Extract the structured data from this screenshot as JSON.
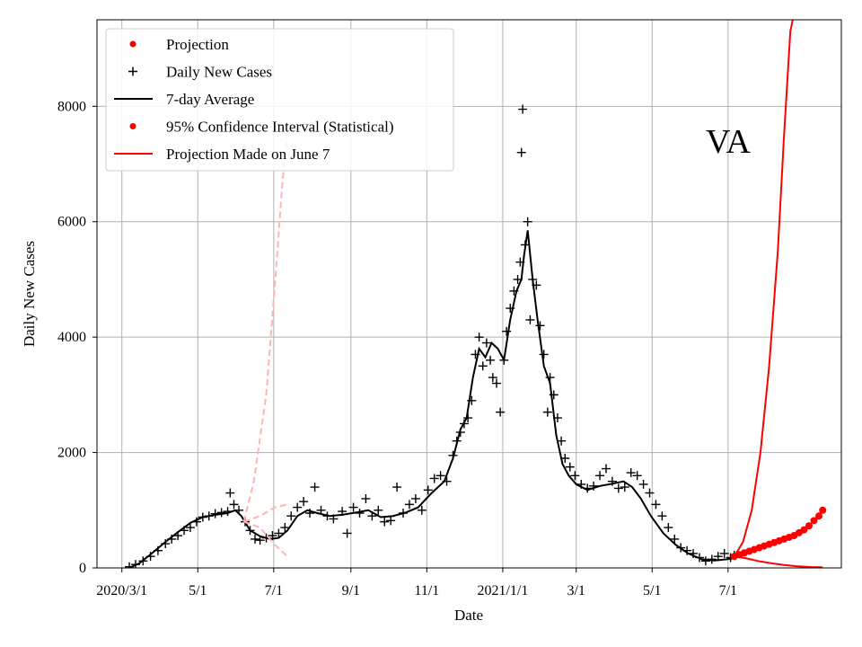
{
  "chart_data": {
    "type": "line",
    "title": "",
    "xlabel": "Date",
    "ylabel": "Daily New Cases",
    "annotation": "VA",
    "x_ticks": [
      "2020/3/1",
      "5/1",
      "7/1",
      "9/1",
      "11/1",
      "2021/1/1",
      "3/1",
      "5/1",
      "7/1"
    ],
    "y_ticks": [
      "0",
      "2000",
      "4000",
      "6000",
      "8000"
    ],
    "ylim": [
      0,
      9500
    ],
    "xlim": [
      "2020-02-10",
      "2021-09-30"
    ],
    "grid": true,
    "legend_position": "top-left",
    "legend": [
      {
        "label": "Projection",
        "marker": "dot",
        "color": "#ff0000"
      },
      {
        "label": "Daily New Cases",
        "marker": "plus",
        "color": "#000000"
      },
      {
        "label": "7-day Average",
        "marker": "line",
        "color": "#000000"
      },
      {
        "label": "95% Confidence Interval (Statistical)",
        "marker": "dot",
        "color": "#ff0000"
      },
      {
        "label": "Projection Made on June 7",
        "marker": "line",
        "color": "#ff0000"
      }
    ],
    "series": [
      {
        "name": "7-day Average",
        "kind": "line",
        "color": "#000000",
        "x": [
          "2020-03-07",
          "2020-03-15",
          "2020-03-25",
          "2020-04-05",
          "2020-04-15",
          "2020-04-25",
          "2020-05-05",
          "2020-05-15",
          "2020-05-25",
          "2020-05-31",
          "2020-06-05",
          "2020-06-12",
          "2020-06-20",
          "2020-06-28",
          "2020-07-05",
          "2020-07-12",
          "2020-07-20",
          "2020-07-28",
          "2020-08-05",
          "2020-08-15",
          "2020-08-25",
          "2020-09-05",
          "2020-09-15",
          "2020-09-25",
          "2020-10-05",
          "2020-10-15",
          "2020-10-25",
          "2020-11-05",
          "2020-11-15",
          "2020-11-22",
          "2020-11-28",
          "2020-12-03",
          "2020-12-08",
          "2020-12-13",
          "2020-12-18",
          "2020-12-23",
          "2020-12-28",
          "2021-01-02",
          "2021-01-07",
          "2021-01-12",
          "2021-01-16",
          "2021-01-18",
          "2021-01-21",
          "2021-01-25",
          "2021-01-29",
          "2021-02-03",
          "2021-02-08",
          "2021-02-13",
          "2021-02-18",
          "2021-02-23",
          "2021-03-01",
          "2021-03-10",
          "2021-03-20",
          "2021-03-30",
          "2021-04-08",
          "2021-04-15",
          "2021-04-22",
          "2021-04-30",
          "2021-05-10",
          "2021-05-20",
          "2021-05-30",
          "2021-06-10",
          "2021-06-20",
          "2021-06-30",
          "2021-07-06"
        ],
        "y": [
          0,
          80,
          250,
          450,
          620,
          780,
          880,
          920,
          950,
          1000,
          900,
          650,
          550,
          500,
          520,
          650,
          900,
          1000,
          950,
          900,
          920,
          960,
          1000,
          880,
          900,
          960,
          1050,
          1300,
          1500,
          1900,
          2400,
          2600,
          3300,
          3800,
          3650,
          3900,
          3800,
          3600,
          4300,
          4800,
          5000,
          5400,
          5850,
          5000,
          4300,
          3500,
          3200,
          2300,
          1800,
          1600,
          1450,
          1350,
          1420,
          1460,
          1500,
          1400,
          1200,
          900,
          600,
          400,
          250,
          150,
          130,
          150,
          170
        ]
      },
      {
        "name": "Daily New Cases",
        "kind": "scatter",
        "marker": "plus",
        "color": "#000000",
        "x": [
          "2020-03-07",
          "2020-03-12",
          "2020-03-18",
          "2020-03-24",
          "2020-03-30",
          "2020-04-05",
          "2020-04-10",
          "2020-04-15",
          "2020-04-20",
          "2020-04-25",
          "2020-04-30",
          "2020-05-05",
          "2020-05-10",
          "2020-05-15",
          "2020-05-20",
          "2020-05-25",
          "2020-05-27",
          "2020-05-30",
          "2020-06-03",
          "2020-06-08",
          "2020-06-12",
          "2020-06-16",
          "2020-06-20",
          "2020-06-25",
          "2020-06-30",
          "2020-07-05",
          "2020-07-10",
          "2020-07-15",
          "2020-07-20",
          "2020-07-25",
          "2020-07-30",
          "2020-08-03",
          "2020-08-08",
          "2020-08-13",
          "2020-08-18",
          "2020-08-25",
          "2020-08-29",
          "2020-09-03",
          "2020-09-08",
          "2020-09-13",
          "2020-09-18",
          "2020-09-23",
          "2020-09-28",
          "2020-10-03",
          "2020-10-08",
          "2020-10-13",
          "2020-10-18",
          "2020-10-23",
          "2020-10-28",
          "2020-11-02",
          "2020-11-07",
          "2020-11-12",
          "2020-11-17",
          "2020-11-22",
          "2020-11-25",
          "2020-11-28",
          "2020-12-01",
          "2020-12-04",
          "2020-12-07",
          "2020-12-10",
          "2020-12-13",
          "2020-12-16",
          "2020-12-19",
          "2020-12-22",
          "2020-12-24",
          "2020-12-27",
          "2020-12-30",
          "2021-01-02",
          "2021-01-04",
          "2021-01-07",
          "2021-01-10",
          "2021-01-13",
          "2021-01-15",
          "2021-01-16",
          "2021-01-17",
          "2021-01-19",
          "2021-01-21",
          "2021-01-23",
          "2021-01-25",
          "2021-01-28",
          "2021-01-31",
          "2021-02-03",
          "2021-02-06",
          "2021-02-08",
          "2021-02-11",
          "2021-02-14",
          "2021-02-17",
          "2021-02-20",
          "2021-02-24",
          "2021-02-28",
          "2021-03-05",
          "2021-03-10",
          "2021-03-15",
          "2021-03-20",
          "2021-03-25",
          "2021-03-30",
          "2021-04-04",
          "2021-04-09",
          "2021-04-14",
          "2021-04-19",
          "2021-04-24",
          "2021-04-29",
          "2021-05-04",
          "2021-05-09",
          "2021-05-14",
          "2021-05-19",
          "2021-05-24",
          "2021-05-29",
          "2021-06-03",
          "2021-06-08",
          "2021-06-13",
          "2021-06-18",
          "2021-06-23",
          "2021-06-28",
          "2021-07-03",
          "2021-07-06"
        ],
        "y": [
          20,
          60,
          120,
          200,
          300,
          420,
          500,
          560,
          650,
          700,
          800,
          880,
          900,
          940,
          960,
          980,
          1300,
          1100,
          1000,
          800,
          650,
          500,
          480,
          520,
          560,
          600,
          700,
          900,
          1050,
          1150,
          950,
          1400,
          1000,
          900,
          850,
          980,
          600,
          1050,
          950,
          1200,
          900,
          1000,
          800,
          820,
          1400,
          950,
          1100,
          1200,
          1000,
          1350,
          1550,
          1600,
          1500,
          1950,
          2200,
          2350,
          2500,
          2600,
          2900,
          3700,
          4000,
          3500,
          3900,
          3600,
          3300,
          3200,
          2700,
          3600,
          4100,
          4500,
          4800,
          5000,
          5300,
          7200,
          7950,
          5600,
          6000,
          4300,
          5000,
          4900,
          4200,
          3700,
          2700,
          3300,
          3000,
          2600,
          2200,
          1900,
          1750,
          1600,
          1450,
          1380,
          1420,
          1600,
          1720,
          1500,
          1380,
          1400,
          1650,
          1600,
          1450,
          1300,
          1100,
          900,
          700,
          500,
          350,
          300,
          250,
          180,
          120,
          150,
          200,
          250,
          180,
          220
        ]
      },
      {
        "name": "Projection",
        "kind": "scatter",
        "marker": "dot",
        "color": "#ff0000",
        "x": [
          "2021-07-06",
          "2021-07-10",
          "2021-07-14",
          "2021-07-18",
          "2021-07-22",
          "2021-07-26",
          "2021-07-30",
          "2021-08-03",
          "2021-08-07",
          "2021-08-11",
          "2021-08-15",
          "2021-08-19",
          "2021-08-23",
          "2021-08-27",
          "2021-08-31",
          "2021-09-04",
          "2021-09-08",
          "2021-09-12",
          "2021-09-15"
        ],
        "y": [
          200,
          230,
          260,
          290,
          320,
          350,
          380,
          410,
          440,
          470,
          500,
          530,
          560,
          610,
          660,
          730,
          820,
          900,
          1000
        ]
      },
      {
        "name": "95% Confidence Interval (Statistical) upper",
        "kind": "line",
        "color": "#ff0000",
        "x": [
          "2021-07-06",
          "2021-07-13",
          "2021-07-20",
          "2021-07-27",
          "2021-08-03",
          "2021-08-10",
          "2021-08-15",
          "2021-08-20",
          "2021-08-22"
        ],
        "y": [
          200,
          450,
          1000,
          2000,
          3500,
          5500,
          7500,
          9300,
          9500
        ]
      },
      {
        "name": "95% Confidence Interval (Statistical) lower",
        "kind": "line",
        "color": "#ff0000",
        "x": [
          "2021-07-06",
          "2021-07-15",
          "2021-07-25",
          "2021-08-05",
          "2021-08-15",
          "2021-08-25",
          "2021-09-05",
          "2021-09-15"
        ],
        "y": [
          200,
          170,
          120,
          80,
          50,
          30,
          15,
          10
        ]
      },
      {
        "name": "Projection Made on June 7 (central)",
        "kind": "dashed",
        "color": "#ffb3b3",
        "x": [
          "2020-06-07",
          "2020-06-20",
          "2020-07-02",
          "2020-07-12"
        ],
        "y": [
          800,
          700,
          400,
          200
        ]
      },
      {
        "name": "Projection Made on June 7 (upper)",
        "kind": "dashed",
        "color": "#ffb3b3",
        "x": [
          "2020-06-07",
          "2020-06-15",
          "2020-06-25",
          "2020-07-03",
          "2020-07-08",
          "2020-07-12"
        ],
        "y": [
          800,
          1500,
          3000,
          5200,
          6700,
          7500
        ]
      },
      {
        "name": "Projection Made on June 7 (mid)",
        "kind": "dashed",
        "color": "#ffb3b3",
        "x": [
          "2020-06-07",
          "2020-06-20",
          "2020-07-02",
          "2020-07-12"
        ],
        "y": [
          800,
          900,
          1050,
          1100
        ]
      }
    ]
  }
}
